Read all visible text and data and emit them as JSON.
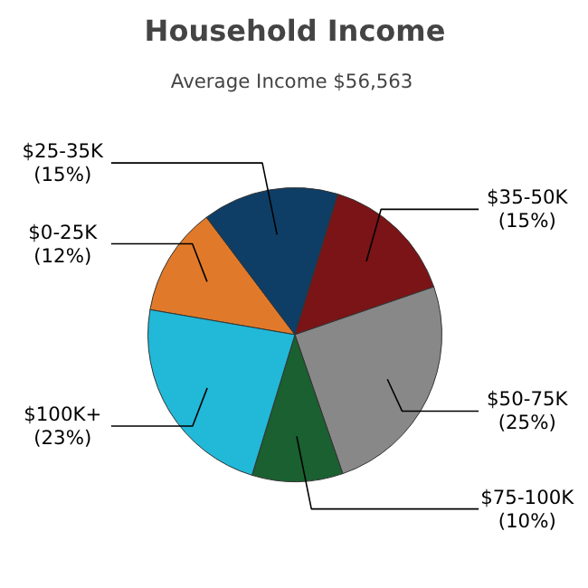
{
  "chart_data": {
    "type": "pie",
    "title": "Household Income",
    "subtitle": "Average Income  $56,563",
    "categories": [
      "$0-25K",
      "$25-35K",
      "$35-50K",
      "$50-75K",
      "$75-100K",
      "$100K+"
    ],
    "values": [
      12,
      15,
      15,
      25,
      10,
      23
    ],
    "value_labels": [
      "(12%)",
      "(15%)",
      "(15%)",
      "(25%)",
      "(10%)",
      "(23%)"
    ],
    "colors": [
      "#e07a2a",
      "#0e3e66",
      "#7a1417",
      "#888888",
      "#1a6030",
      "#22b8d8"
    ]
  }
}
